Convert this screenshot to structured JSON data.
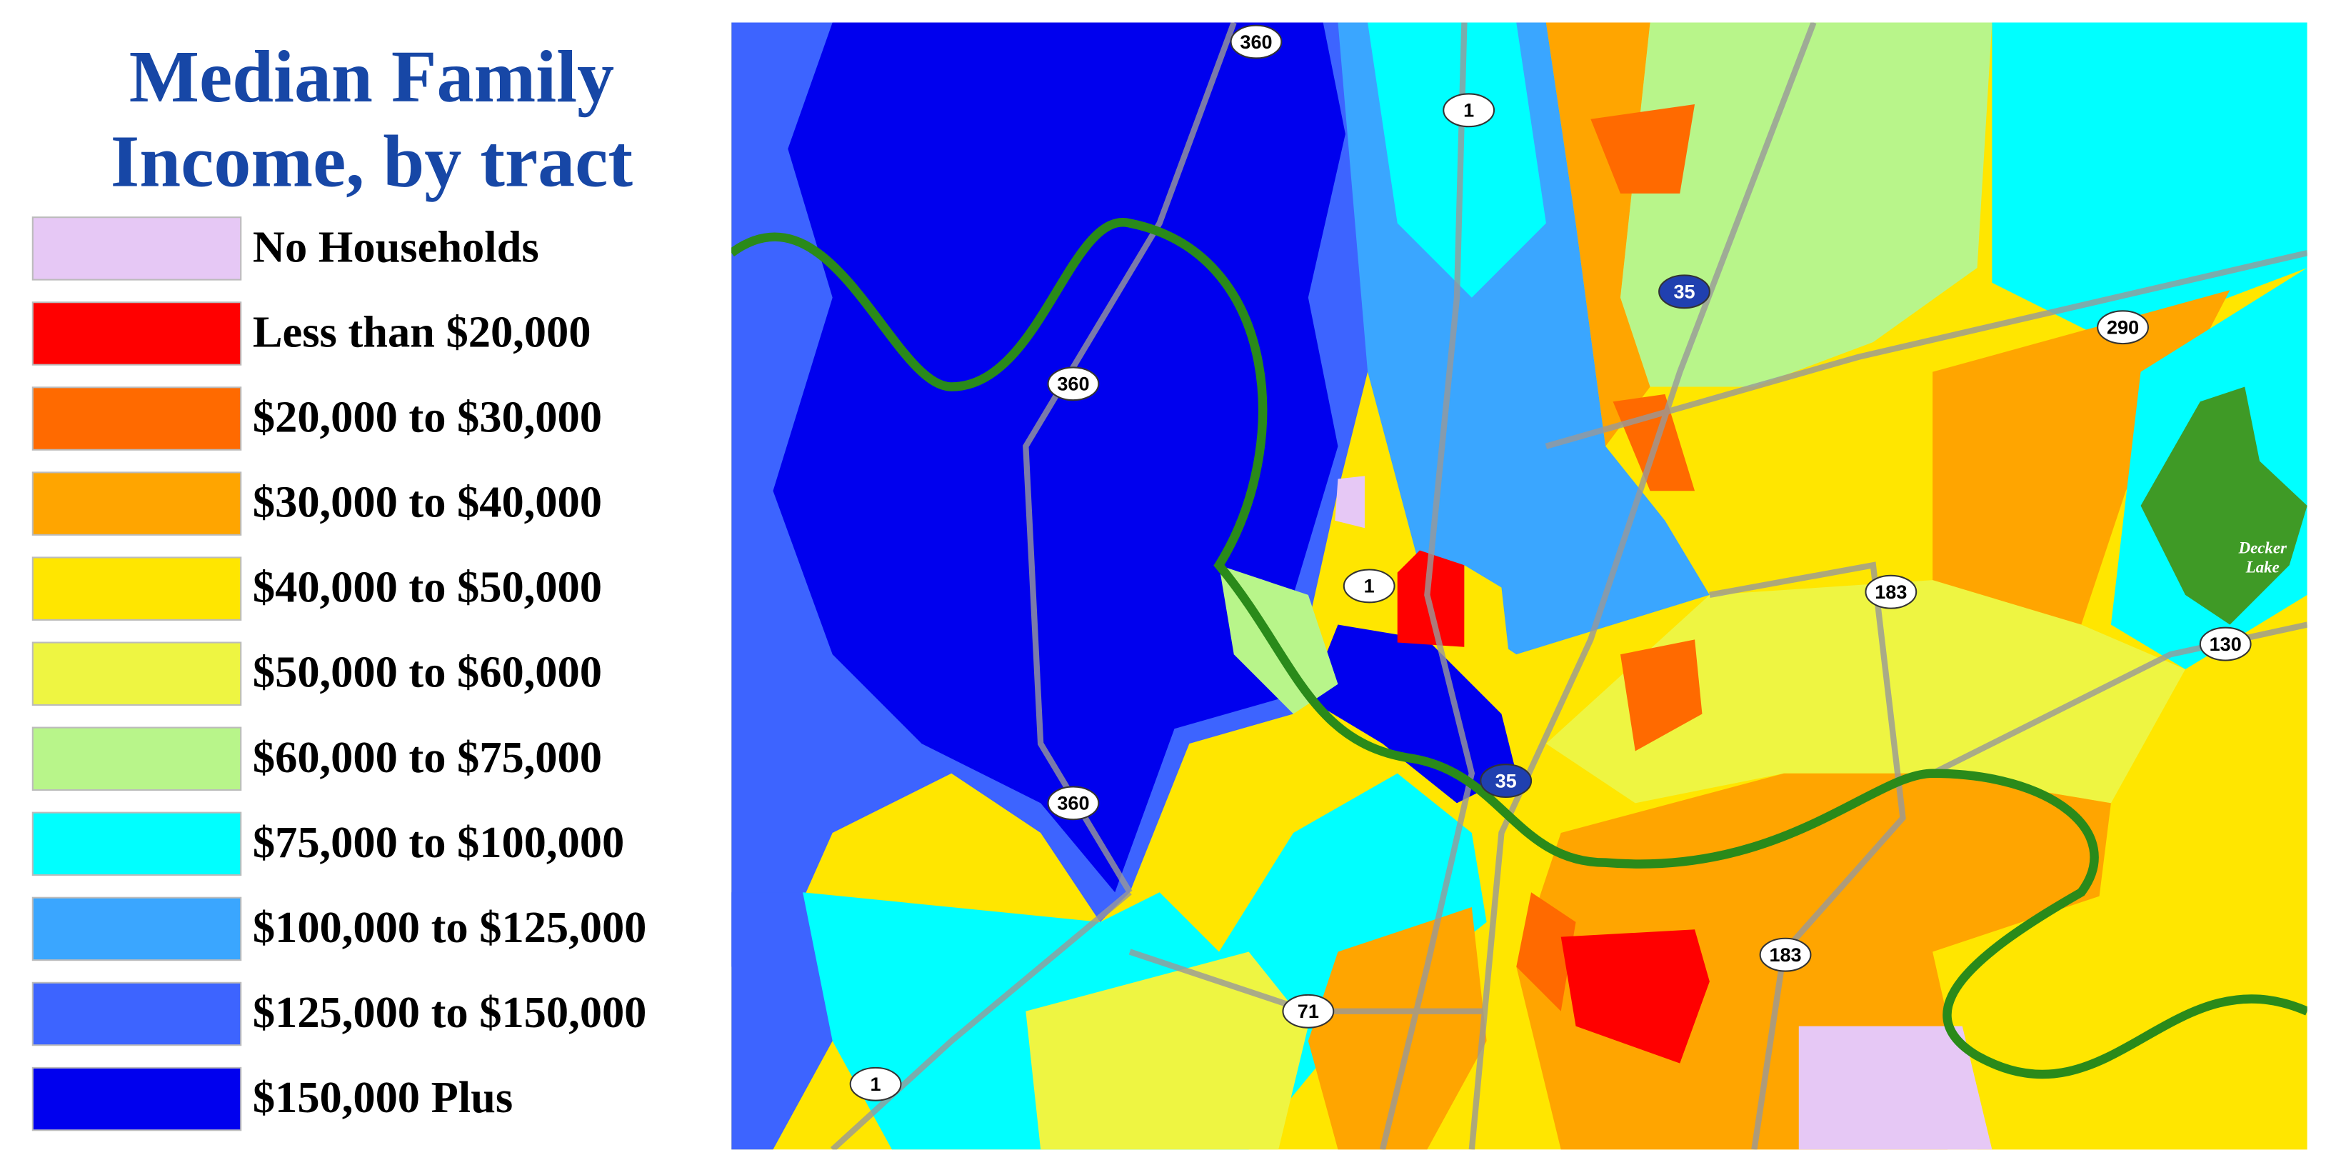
{
  "title": [
    "Median Family",
    "Income, by tract"
  ],
  "legend": [
    {
      "label": "No Households",
      "color": "#e6c8f5"
    },
    {
      "label": "Less than $20,000",
      "color": "#ff0000"
    },
    {
      "label": "$20,000 to $30,000",
      "color": "#ff6a00"
    },
    {
      "label": "$30,000 to $40,000",
      "color": "#ffa500"
    },
    {
      "label": "$40,000 to $50,000",
      "color": "#ffe600"
    },
    {
      "label": "$50,000 to $60,000",
      "color": "#eef542"
    },
    {
      "label": "$60,000 to $75,000",
      "color": "#b8f58a"
    },
    {
      "label": "$75,000 to $100,000",
      "color": "#00ffff"
    },
    {
      "label": "$100,000 to $125,000",
      "color": "#3aa6ff"
    },
    {
      "label": "$125,000 to $150,000",
      "color": "#3d64ff"
    },
    {
      "label": "$150,000 Plus",
      "color": "#0000ee"
    }
  ],
  "map": {
    "shields": [
      "360",
      "1",
      "35",
      "290",
      "360",
      "1",
      "183",
      "130",
      "35",
      "360",
      "183",
      "71",
      "1"
    ],
    "lake": [
      "Decker",
      "Lake"
    ]
  }
}
